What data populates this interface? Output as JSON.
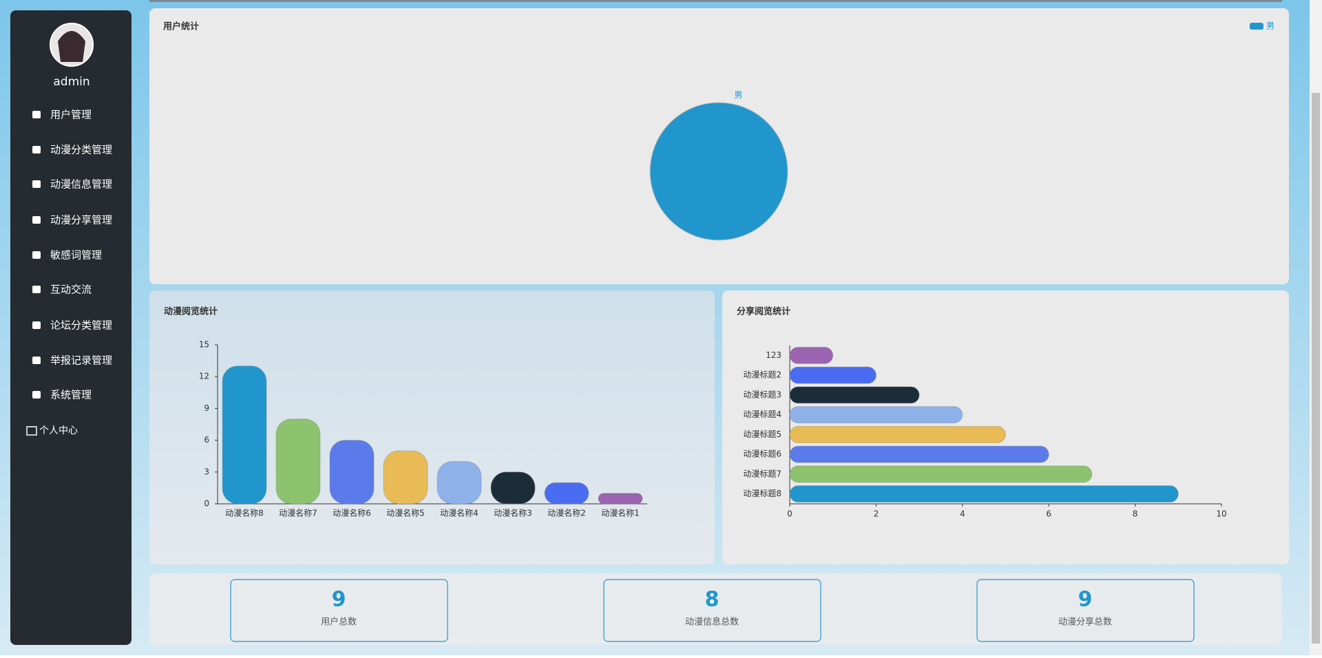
{
  "sidebar": {
    "user": "admin",
    "menu": [
      "用户管理",
      "动漫分类管理",
      "动漫信息管理",
      "动漫分享管理",
      "敏感词管理",
      "互动交流",
      "论坛分类管理",
      "举报记录管理",
      "系统管理"
    ],
    "profile": "个人中心"
  },
  "chart_data": [
    {
      "type": "pie",
      "title": "用户统计",
      "categories": [
        "男"
      ],
      "values": [
        9
      ],
      "colors": [
        "#2196cc"
      ],
      "legend": "top-right"
    },
    {
      "type": "bar",
      "title": "动漫阅览统计",
      "categories": [
        "动漫名称8",
        "动漫名称7",
        "动漫名称6",
        "动漫名称5",
        "动漫名称4",
        "动漫名称3",
        "动漫名称2",
        "动漫名称1"
      ],
      "values": [
        13,
        8,
        6,
        5,
        4,
        3,
        2,
        1
      ],
      "colors": [
        "#2196cc",
        "#8dc26f",
        "#5b7bea",
        "#e8bb57",
        "#8fb1ea",
        "#1c2d3a",
        "#4a6cf0",
        "#9b64b0"
      ],
      "ylim": [
        0,
        15
      ],
      "yticks": [
        0,
        3,
        6,
        9,
        12,
        15
      ]
    },
    {
      "type": "barh",
      "title": "分享阅览统计",
      "categories": [
        "123",
        "动漫标题2",
        "动漫标题3",
        "动漫标题4",
        "动漫标题5",
        "动漫标题6",
        "动漫标题7",
        "动漫标题8"
      ],
      "values": [
        1,
        2,
        3,
        4,
        5,
        6,
        7,
        9
      ],
      "colors": [
        "#9b64b0",
        "#4a6cf0",
        "#1c2d3a",
        "#8fb1ea",
        "#e8bb57",
        "#5b7bea",
        "#8dc26f",
        "#2196cc"
      ],
      "xlim": [
        0,
        10
      ],
      "xticks": [
        0,
        2,
        4,
        6,
        8,
        10
      ]
    }
  ],
  "stats": [
    {
      "value": 9,
      "label": "用户总数"
    },
    {
      "value": 8,
      "label": "动漫信息总数"
    },
    {
      "value": 9,
      "label": "动漫分享总数"
    }
  ]
}
